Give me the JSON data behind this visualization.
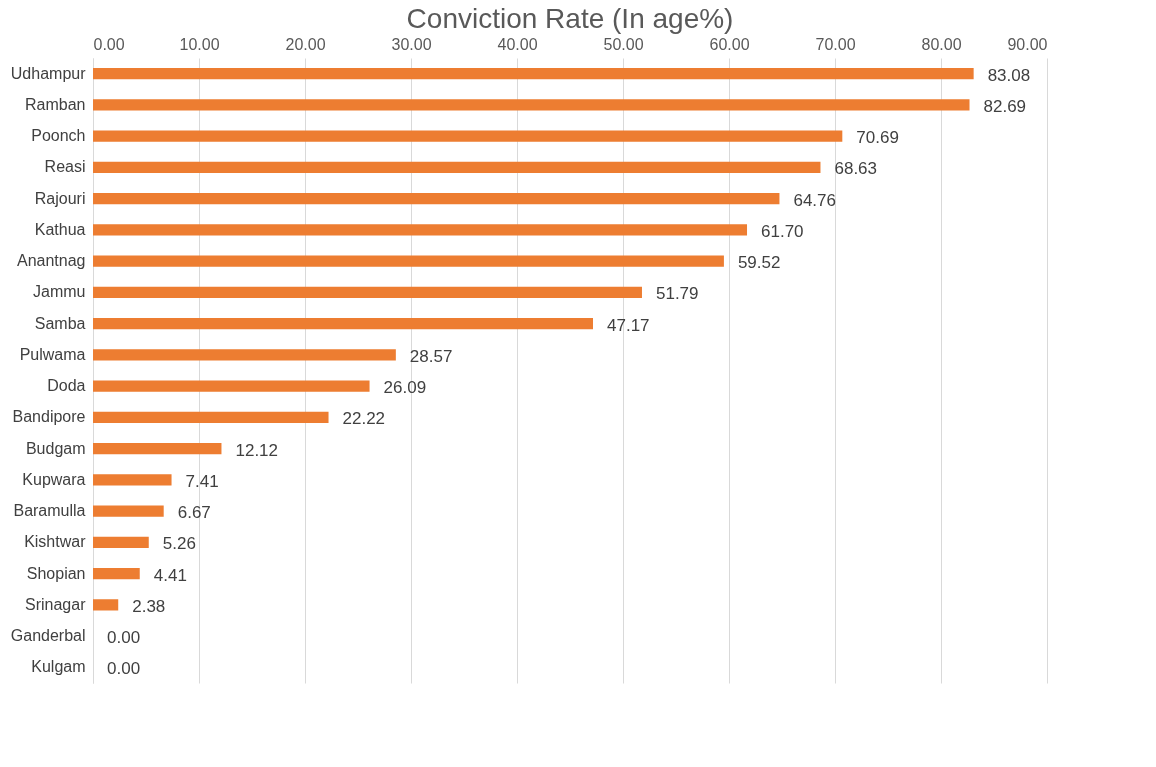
{
  "chart_data": {
    "type": "bar",
    "orientation": "horizontal",
    "title": "Conviction Rate (In age%)",
    "categories": [
      "Udhampur",
      "Ramban",
      "Poonch",
      "Reasi",
      "Rajouri",
      "Kathua",
      "Anantnag",
      "Jammu",
      "Samba",
      "Pulwama",
      "Doda",
      "Bandipore",
      "Budgam",
      "Kupwara",
      "Baramulla",
      "Kishtwar",
      "Shopian",
      "Srinagar",
      "Ganderbal",
      "Kulgam"
    ],
    "values": [
      83.08,
      82.69,
      70.69,
      68.63,
      64.76,
      61.7,
      59.52,
      51.79,
      47.17,
      28.57,
      26.09,
      22.22,
      12.12,
      7.41,
      6.67,
      5.26,
      4.41,
      2.38,
      0,
      0
    ],
    "value_labels": [
      "83.08",
      "82.69",
      "70.69",
      "68.63",
      "64.76",
      "61.70",
      "59.52",
      "51.79",
      "47.17",
      "28.57",
      "26.09",
      "22.22",
      "12.12",
      "7.41",
      "6.67",
      "5.26",
      "4.41",
      "2.38",
      "0.00",
      "0.00"
    ],
    "color": "#ed7d31",
    "xlim": [
      0,
      90
    ],
    "xticks": [
      {
        "value": 0,
        "label": "0.00"
      },
      {
        "value": 10,
        "label": "10.00"
      },
      {
        "value": 20,
        "label": "20.00"
      },
      {
        "value": 30,
        "label": "30.00"
      },
      {
        "value": 40,
        "label": "40.00"
      },
      {
        "value": 50,
        "label": "50.00"
      },
      {
        "value": 60,
        "label": "60.00"
      },
      {
        "value": 70,
        "label": "70.00"
      },
      {
        "value": 80,
        "label": "80.00"
      },
      {
        "value": 90,
        "label": "90.00"
      }
    ],
    "grid": "x"
  }
}
